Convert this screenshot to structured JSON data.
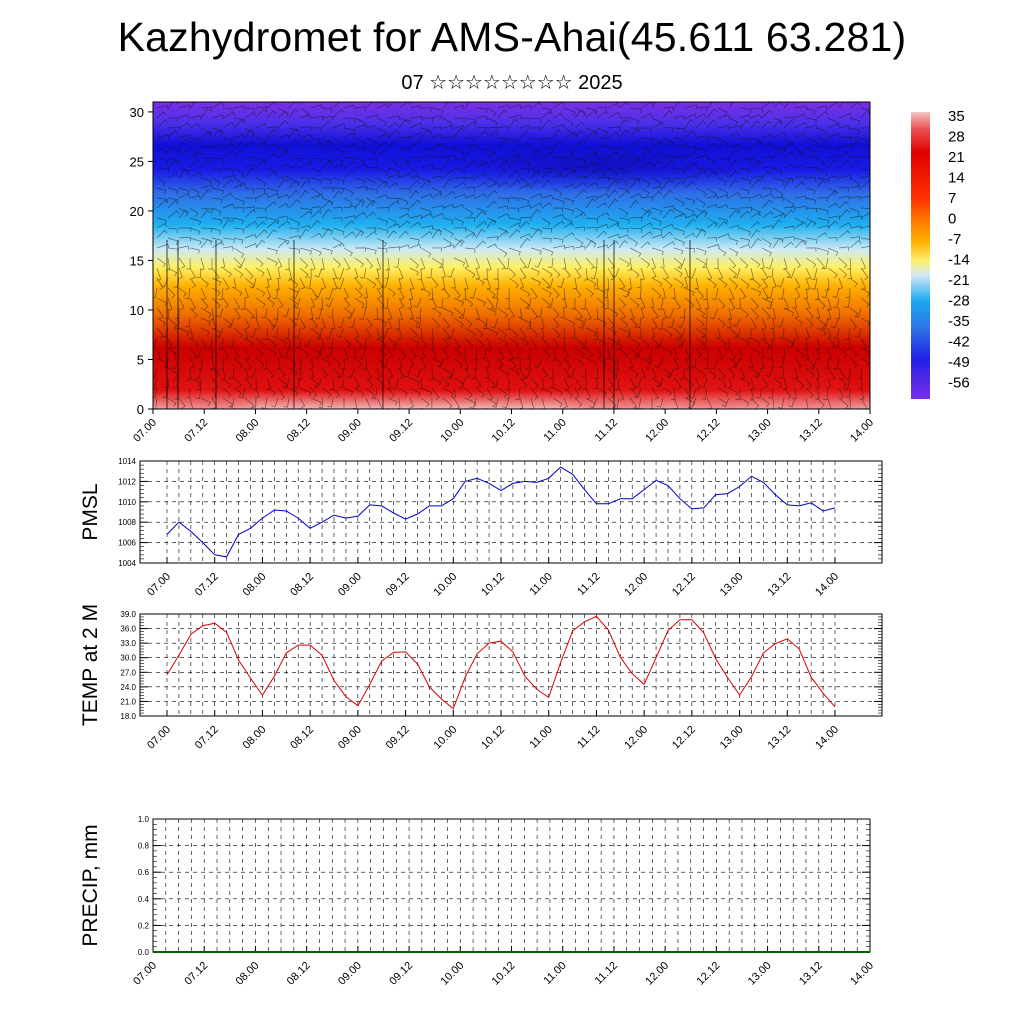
{
  "title": "Kazhydromet for AMS-Ahai(45.611 63.281)",
  "subtitle": "07 ☆☆☆☆☆☆☆☆ 2025",
  "colors": {
    "pmsl_line": "#0000cc",
    "temp_line": "#dd0000",
    "precip_line": "#006400",
    "colorbar_top": "#f3c8c8",
    "colorbar_warm": "#e00000",
    "colorbar_mid": "#ffe033",
    "colorbar_cool": "#1fa0e8",
    "colorbar_bottom": "#6a1ee8"
  },
  "chart_data": [
    {
      "type": "heatmap",
      "title": "",
      "xlabel": "",
      "ylabel": "",
      "x_ticks": [
        "07.00",
        "07.12",
        "08.00",
        "08.12",
        "09.00",
        "09.12",
        "10.00",
        "10.12",
        "11.00",
        "11.12",
        "12.00",
        "12.12",
        "13.00",
        "13.12",
        "14.00"
      ],
      "y_ticks": [
        "0",
        "5",
        "10",
        "15",
        "20",
        "25",
        "30"
      ],
      "ylim": [
        0,
        31
      ],
      "colorbar_labels": [
        "35",
        "28",
        "21",
        "14",
        "7",
        "0",
        "-7",
        "-14",
        "-21",
        "-28",
        "-35",
        "-42",
        "-49",
        "-56"
      ],
      "overlay": "wind barbs",
      "warm_pulses_x": [
        "07.12",
        "11.12",
        "12.12",
        "13.12"
      ]
    },
    {
      "type": "line",
      "ylabel": "PMSL",
      "ylim": [
        1004,
        1014
      ],
      "y_ticks": [
        "1004",
        "1006",
        "1008",
        "1010",
        "1012",
        "1014"
      ],
      "x_ticks": [
        "07.00",
        "07.12",
        "08.00",
        "08.12",
        "09.00",
        "09.12",
        "10.00",
        "10.12",
        "11.00",
        "11.12",
        "12.00",
        "12.12",
        "13.00",
        "13.12",
        "14.00"
      ],
      "values": [
        1006.8,
        1008.0,
        1007.1,
        1006.0,
        1004.8,
        1004.6,
        1006.8,
        1007.4,
        1008.4,
        1009.2,
        1009.1,
        1008.4,
        1007.4,
        1008.0,
        1008.7,
        1008.4,
        1008.6,
        1009.7,
        1009.6,
        1008.9,
        1008.3,
        1008.8,
        1009.6,
        1009.6,
        1010.3,
        1012.0,
        1012.3,
        1011.8,
        1011.1,
        1011.8,
        1012.0,
        1011.9,
        1012.3,
        1013.4,
        1012.7,
        1011.2,
        1009.8,
        1009.8,
        1010.3,
        1010.3,
        1011.2,
        1012.1,
        1011.6,
        1010.3,
        1009.3,
        1009.4,
        1010.7,
        1010.8,
        1011.5,
        1012.5,
        1011.9,
        1010.7,
        1009.7,
        1009.6,
        1009.9,
        1009.1,
        1009.4
      ],
      "series": [
        {
          "name": "",
          "color": "#0000cc"
        }
      ]
    },
    {
      "type": "line",
      "ylabel": "TEMP at 2 M",
      "ylim": [
        18.0,
        39.0
      ],
      "y_ticks": [
        "18.0",
        "21.0",
        "24.0",
        "27.0",
        "30.0",
        "33.0",
        "36.0",
        "39.0"
      ],
      "x_ticks": [
        "07.00",
        "07.12",
        "08.00",
        "08.12",
        "09.00",
        "09.12",
        "10.00",
        "10.12",
        "11.00",
        "11.12",
        "12.00",
        "12.12",
        "13.00",
        "13.12",
        "14.00"
      ],
      "values": [
        26.5,
        30.5,
        34.8,
        36.6,
        37.1,
        35.2,
        29.5,
        25.8,
        22.3,
        26.2,
        31.0,
        32.6,
        32.6,
        30.5,
        25.3,
        22.0,
        20.1,
        24.5,
        29.3,
        31.1,
        31.2,
        28.7,
        24.0,
        21.5,
        19.5,
        26.0,
        30.8,
        33.0,
        33.4,
        31.2,
        26.2,
        23.5,
        21.8,
        29.0,
        35.5,
        37.4,
        38.5,
        35.7,
        30.1,
        26.7,
        24.5,
        30.0,
        35.6,
        37.8,
        37.8,
        35.1,
        29.8,
        25.9,
        22.3,
        26.1,
        31.0,
        32.9,
        33.9,
        31.8,
        26.0,
        22.7,
        19.9
      ],
      "series": [
        {
          "name": "",
          "color": "#dd0000"
        }
      ]
    },
    {
      "type": "line",
      "ylabel": "PRECIP, mm",
      "ylim": [
        0.0,
        1.0
      ],
      "y_ticks": [
        "0.0",
        "0.2",
        "0.4",
        "0.6",
        "0.8",
        "1.0"
      ],
      "x_ticks": [
        "07.00",
        "07.12",
        "08.00",
        "08.12",
        "09.00",
        "09.12",
        "10.00",
        "10.12",
        "11.00",
        "11.12",
        "12.00",
        "12.12",
        "13.00",
        "13.12",
        "14.00"
      ],
      "values": [
        0,
        0,
        0,
        0,
        0,
        0,
        0,
        0,
        0,
        0,
        0,
        0,
        0,
        0,
        0,
        0,
        0,
        0,
        0,
        0,
        0,
        0,
        0,
        0,
        0,
        0,
        0,
        0,
        0,
        0,
        0,
        0,
        0,
        0,
        0,
        0,
        0,
        0,
        0,
        0,
        0,
        0,
        0,
        0,
        0,
        0,
        0,
        0,
        0,
        0,
        0,
        0,
        0,
        0,
        0,
        0,
        0,
        0,
        0
      ],
      "series": [
        {
          "name": "",
          "color": "#006400"
        }
      ]
    }
  ]
}
